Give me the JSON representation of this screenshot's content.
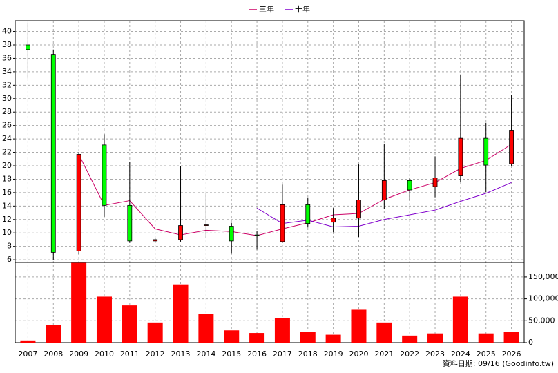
{
  "chart_data": {
    "type": "candlestick",
    "categories": [
      "2007",
      "2008",
      "2009",
      "2010",
      "2011",
      "2012",
      "2013",
      "2014",
      "2015",
      "2016",
      "2017",
      "2018",
      "2019",
      "2020",
      "2021",
      "2022",
      "2023",
      "2024",
      "2025",
      "2026"
    ],
    "candles": {
      "open": [
        38.0,
        36.6,
        7.3,
        23.1,
        14.1,
        8.8,
        9.0,
        11.1,
        11.0,
        9.7,
        8.7,
        14.2,
        11.6,
        12.2,
        14.9,
        17.8,
        16.9,
        18.5,
        24.1,
        20.3
      ],
      "high": [
        41.2,
        37.3,
        22.0,
        24.7,
        20.6,
        9.2,
        20.0,
        16.0,
        11.5,
        10.3,
        17.2,
        15.3,
        13.7,
        20.2,
        23.3,
        18.2,
        21.4,
        33.6,
        26.4,
        30.5
      ],
      "low": [
        33.0,
        6.0,
        6.8,
        12.4,
        8.5,
        8.5,
        8.7,
        9.2,
        7.0,
        7.5,
        8.5,
        10.8,
        10.1,
        9.4,
        13.6,
        14.8,
        15.3,
        17.6,
        16.1,
        20.0
      ],
      "close": [
        37.3,
        7.1,
        21.7,
        14.1,
        8.8,
        9.0,
        11.1,
        11.2,
        8.8,
        9.6,
        14.2,
        11.4,
        12.2,
        14.9,
        17.8,
        16.4,
        18.2,
        24.1,
        20.1,
        25.3
      ],
      "up_color": "#ff0000",
      "down_color": "#00ff00"
    },
    "series": [
      {
        "name": "三年",
        "color": "#cc0066",
        "values": [
          null,
          null,
          21.7,
          14.1,
          14.8,
          10.6,
          9.7,
          10.4,
          10.2,
          9.6,
          10.6,
          11.5,
          12.7,
          12.9,
          15.0,
          16.4,
          17.5,
          19.6,
          20.8,
          23.2
        ]
      },
      {
        "name": "十年",
        "color": "#8000cc",
        "values": [
          null,
          null,
          null,
          null,
          null,
          null,
          null,
          null,
          null,
          13.7,
          11.4,
          11.9,
          10.9,
          11.0,
          12.0,
          12.7,
          13.4,
          14.7,
          15.9,
          17.5
        ]
      }
    ],
    "volume": {
      "axis": "y2",
      "color": "#ff0000",
      "values": [
        5000,
        40000,
        182000,
        105000,
        85000,
        46000,
        133000,
        66000,
        28000,
        22000,
        56000,
        24000,
        18000,
        75000,
        46000,
        16000,
        21000,
        105000,
        21000,
        24000
      ]
    },
    "ylim": [
      5.6,
      41.6
    ],
    "yticks": [
      6,
      8,
      10,
      12,
      14,
      16,
      18,
      20,
      22,
      24,
      26,
      28,
      30,
      32,
      34,
      36,
      38,
      40
    ],
    "y2lim": [
      0,
      183000
    ],
    "y2ticks": [
      0,
      {
        "value": 50000,
        "label": "50,000"
      },
      {
        "value": 100000,
        "label": "100,000"
      },
      {
        "value": 150000,
        "label": "150,000"
      }
    ],
    "grid": true,
    "legend": "top",
    "footer": "資料日期: 09/16 (Goodinfo.tw)"
  }
}
